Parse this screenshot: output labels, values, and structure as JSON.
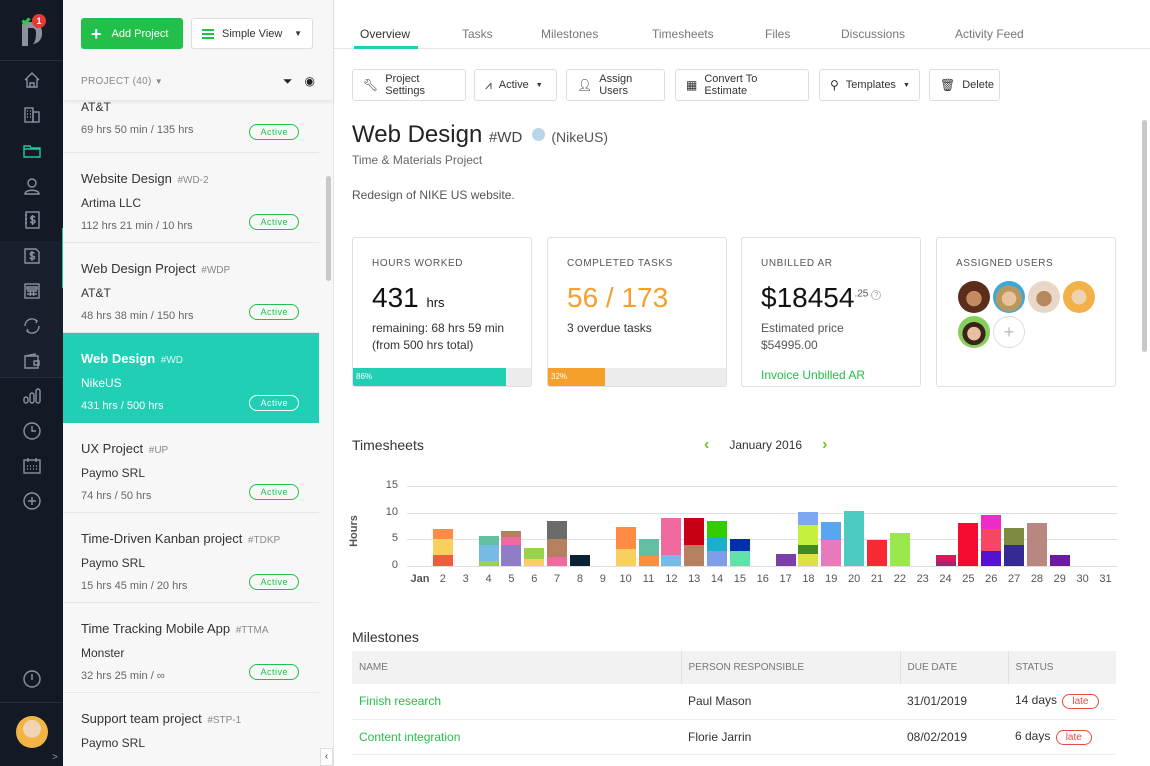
{
  "rail": {
    "notification_count": "1",
    "items": [
      "home-icon",
      "clients-icon",
      "projects-icon",
      "users-icon",
      "expenses-icon",
      "invoices-icon",
      "estimates-icon",
      "recurring-icon",
      "payments-icon",
      "reports-icon",
      "time-icon",
      "calendar-icon",
      "add-icon"
    ],
    "expand": ">"
  },
  "project_list": {
    "add_button": "Add Project",
    "view_select": "Simple View",
    "header": "PROJECT (40)",
    "items": [
      {
        "name": "",
        "code": "",
        "client": "AT&T",
        "hours": "69 hrs 50 min / 135 hrs",
        "status": "Active"
      },
      {
        "name": "Website Design",
        "code": "#WD-2",
        "client": "Artima LLC",
        "hours": "112 hrs 21 min / 10 hrs",
        "status": "Active"
      },
      {
        "name": "Web Design Project",
        "code": "#WDP",
        "client": "AT&T",
        "hours": "48 hrs 38 min / 150 hrs",
        "status": "Active"
      },
      {
        "name": "Web Design",
        "code": "#WD",
        "client": "NikeUS",
        "hours": "431 hrs / 500 hrs",
        "status": "Active",
        "selected": true
      },
      {
        "name": "UX Project",
        "code": "#UP",
        "client": "Paymo SRL",
        "hours": "74 hrs / 50 hrs",
        "status": "Active"
      },
      {
        "name": "Time-Driven Kanban project",
        "code": "#TDKP",
        "client": "Paymo SRL",
        "hours": "15 hrs 45 min / 20 hrs",
        "status": "Active"
      },
      {
        "name": "Time Tracking Mobile App",
        "code": "#TTMA",
        "client": "Monster",
        "hours": "32 hrs 25 min / ∞",
        "status": "Active"
      },
      {
        "name": "Support team project",
        "code": "#STP-1",
        "client": "Paymo SRL",
        "hours": "",
        "status": ""
      }
    ]
  },
  "tabs": [
    "Overview",
    "Tasks",
    "Milestones",
    "Timesheets",
    "Files",
    "Discussions",
    "Activity Feed"
  ],
  "active_tab": "Overview",
  "toolbar": {
    "project_settings": "Project Settings",
    "status": "Active",
    "assign_users": "Assign Users",
    "convert": "Convert To Estimate",
    "templates": "Templates",
    "delete": "Delete"
  },
  "project": {
    "title": "Web Design",
    "code": "#WD",
    "client": "(NikeUS)",
    "type": "Time & Materials Project",
    "description": "Redesign of NIKE US website.",
    "color": "#b9d6e8"
  },
  "cards": {
    "hours": {
      "label": "HOURS WORKED",
      "value": "431",
      "unit": "hrs",
      "line1": "remaining: 68 hrs 59 min",
      "line2": "(from 500 hrs total)",
      "progress": "86%",
      "progress_value": 86,
      "color": "#20cfb4"
    },
    "tasks": {
      "label": "COMPLETED TASKS",
      "value": "56 / 173",
      "line1": "3 overdue tasks",
      "progress": "32%",
      "progress_value": 32,
      "color": "#f5a02a"
    },
    "unbilled": {
      "label": "UNBILLED AR",
      "value": "$18454",
      "cents": ".25",
      "help": "?",
      "line1": "Estimated price",
      "line2": "$54995.00",
      "link": "Invoice Unbilled AR"
    },
    "users": {
      "label": "ASSIGNED USERS",
      "add": "+"
    }
  },
  "timesheets": {
    "title": "Timesheets",
    "month": "January 2016",
    "prev": "‹",
    "next": "›"
  },
  "chart_data": {
    "type": "bar",
    "stacked": true,
    "title": "Timesheets",
    "xlabel": "",
    "ylabel": "Hours",
    "ylim": [
      0,
      15
    ],
    "yticks": [
      0,
      5,
      10,
      15
    ],
    "categories": [
      "Jan",
      "2",
      "3",
      "4",
      "5",
      "6",
      "7",
      "8",
      "9",
      "10",
      "11",
      "12",
      "13",
      "14",
      "15",
      "16",
      "17",
      "18",
      "19",
      "20",
      "21",
      "22",
      "23",
      "24",
      "25",
      "26",
      "27",
      "28",
      "29",
      "30",
      "31"
    ],
    "bars": [
      [],
      [
        [
          2,
          "#f55a3c"
        ],
        [
          3,
          "#f7d060"
        ],
        [
          2,
          "#ff8c42"
        ]
      ],
      [],
      [
        [
          1,
          "#9ad24e"
        ],
        [
          3,
          "#76bbe5"
        ],
        [
          1.7,
          "#62bfa4"
        ]
      ],
      [
        [
          4,
          "#8f7dc6"
        ],
        [
          1.4,
          "#f06aa0"
        ],
        [
          1.2,
          "#b5805f"
        ]
      ],
      [
        [
          1.4,
          "#f7d060"
        ],
        [
          1.9,
          "#9ad24e"
        ]
      ],
      [
        [
          1.6,
          "#f06aa0"
        ],
        [
          3.5,
          "#b5805f"
        ],
        [
          3.4,
          "#6b6b6b"
        ]
      ],
      [
        [
          2,
          "#0a2233"
        ]
      ],
      [],
      [
        [
          3.1,
          "#f7d060"
        ],
        [
          4.2,
          "#ff8c42"
        ]
      ],
      [
        [
          1.9,
          "#ff8c42"
        ],
        [
          3.2,
          "#62bfa4"
        ]
      ],
      [
        [
          2.1,
          "#76bbe5"
        ],
        [
          6.9,
          "#f06aa0"
        ]
      ],
      [
        [
          3.9,
          "#b5805f"
        ],
        [
          5.1,
          "#c80014"
        ]
      ],
      [
        [
          2.9,
          "#7f9ee8"
        ],
        [
          2.6,
          "#1ab0cc"
        ],
        [
          3,
          "#33cc00"
        ]
      ],
      [
        [
          2.9,
          "#62e0aa"
        ],
        [
          2.2,
          "#0030b0"
        ]
      ],
      [],
      [
        [
          2.2,
          "#7c3fa8"
        ]
      ],
      [
        [
          2.3,
          "#e0e040"
        ],
        [
          1.7,
          "#3f8a23"
        ],
        [
          3.6,
          "#c5f03d"
        ],
        [
          2.5,
          "#7ba8f0"
        ]
      ],
      [
        [
          4.9,
          "#e879bb"
        ],
        [
          3.4,
          "#58a5f0"
        ]
      ],
      [
        [
          10.3,
          "#4ccbc0"
        ]
      ],
      [
        [
          4.8,
          "#f52a33"
        ]
      ],
      [
        [
          6.2,
          "#9be84e"
        ]
      ],
      [],
      [
        [
          0.9,
          "#9e2a6e"
        ],
        [
          1.2,
          "#e0155a"
        ]
      ],
      [
        [
          8,
          "#f50a32"
        ]
      ],
      [
        [
          2.9,
          "#5510d0"
        ],
        [
          4,
          "#f74660"
        ],
        [
          2.6,
          "#ee2ac8"
        ]
      ],
      [
        [
          3.9,
          "#352a90"
        ],
        [
          3.2,
          "#7d8a40"
        ]
      ],
      [
        [
          8,
          "#b88880"
        ]
      ],
      [
        [
          2,
          "#6e1aa0"
        ]
      ],
      [],
      []
    ]
  },
  "milestones": {
    "title": "Milestones",
    "columns": [
      "NAME",
      "PERSON RESPONSIBLE",
      "DUE DATE",
      "STATUS"
    ],
    "rows": [
      {
        "name": "Finish research",
        "person": "Paul Mason",
        "due": "31/01/2019",
        "status": "14 days",
        "badge": "late"
      },
      {
        "name": "Content integration",
        "person": "Florie Jarrin",
        "due": "08/02/2019",
        "status": "6 days",
        "badge": "late"
      }
    ]
  }
}
